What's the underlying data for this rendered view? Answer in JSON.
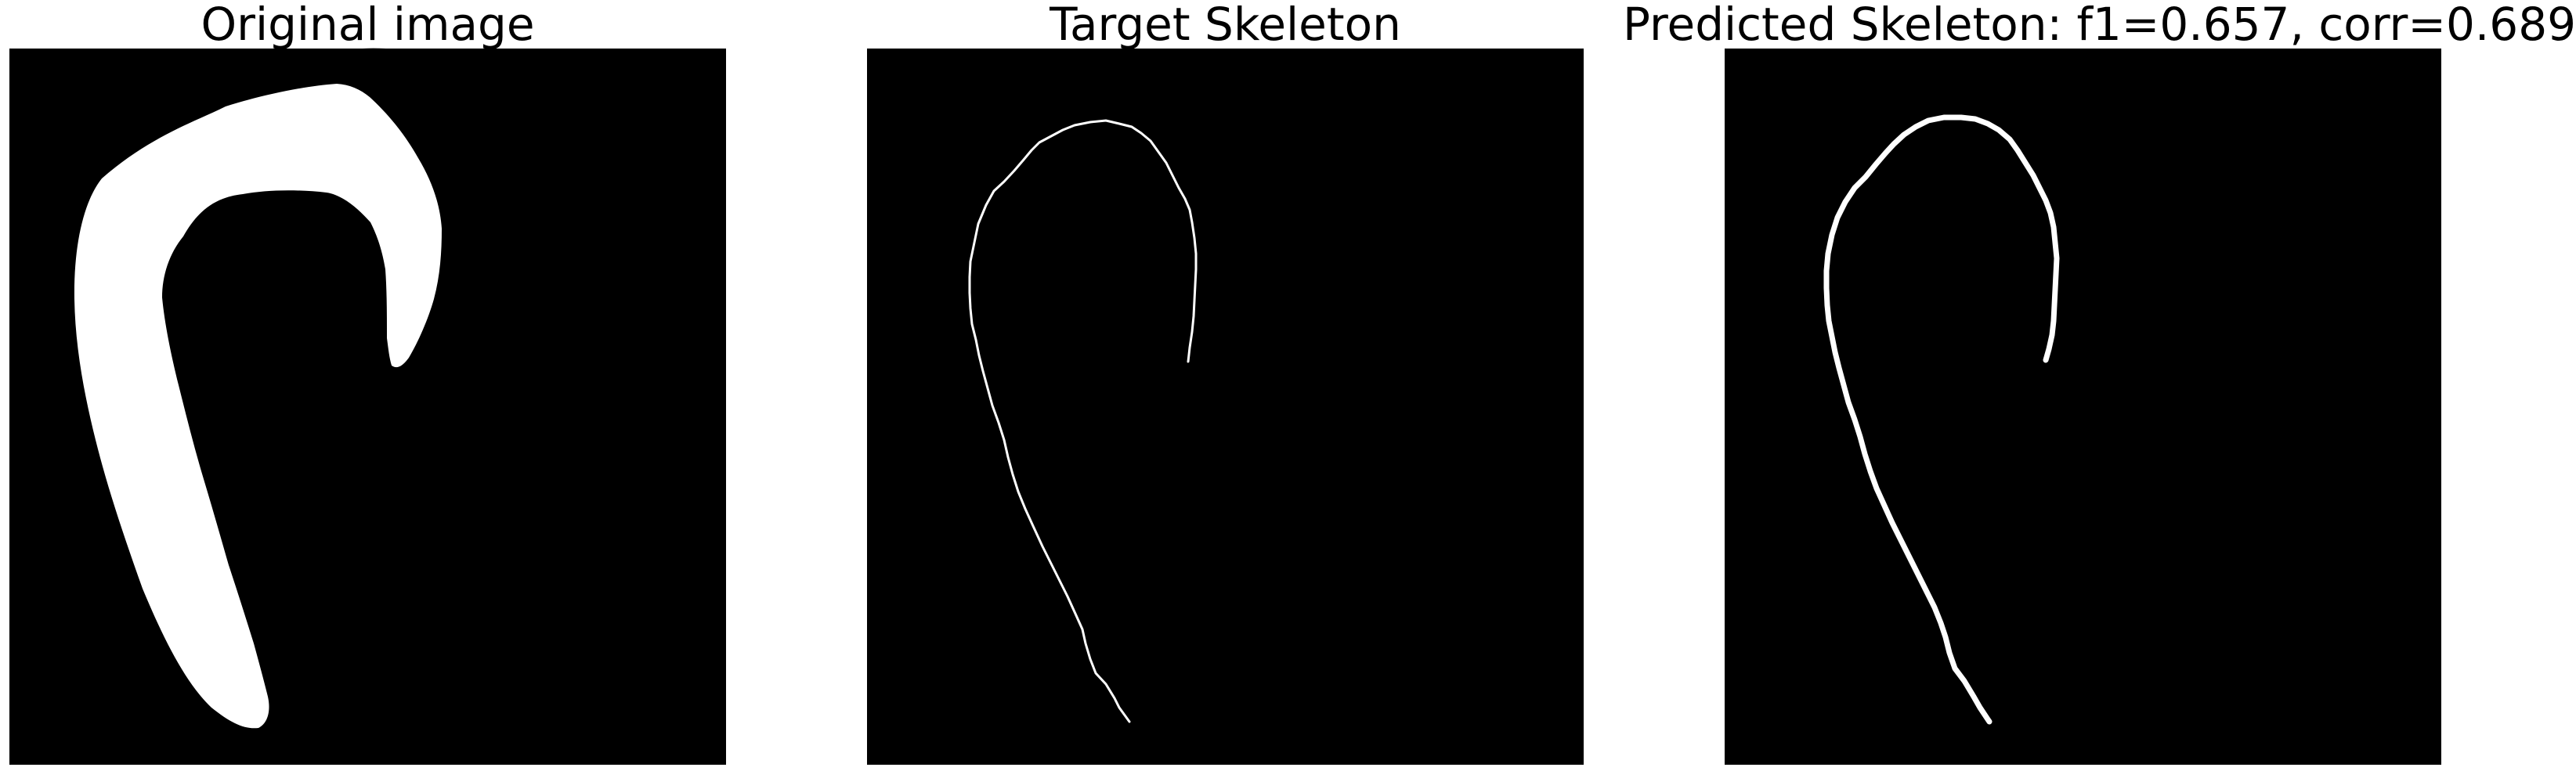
{
  "panels": [
    {
      "title": "Original image",
      "content": "binary-mask"
    },
    {
      "title": "Target Skeleton",
      "content": "skeleton-thin"
    },
    {
      "title": "Predicted Skeleton: f1=0.657, corr=0.689",
      "content": "skeleton-thick"
    }
  ],
  "colors": {
    "background": "#ffffff",
    "panel_background": "#000000",
    "foreground": "#ffffff",
    "title_text": "#000000"
  }
}
